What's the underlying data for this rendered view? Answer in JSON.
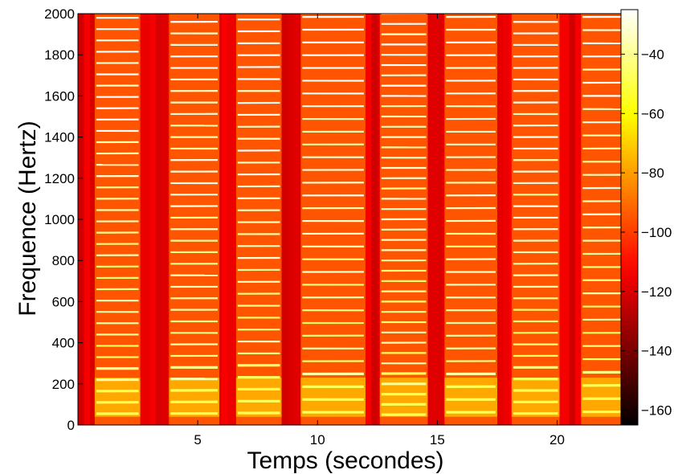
{
  "chart_data": {
    "type": "heatmap",
    "title": "",
    "xlabel": "Temps (secondes)",
    "ylabel": "Frequence (Hertz)",
    "xlim": [
      0,
      23
    ],
    "ylim": [
      0,
      2000
    ],
    "x_ticks": [
      5,
      10,
      15,
      20
    ],
    "y_ticks": [
      0,
      200,
      400,
      600,
      800,
      1000,
      1200,
      1400,
      1600,
      1800,
      2000
    ],
    "colorbar": {
      "colormap": "hot",
      "range": [
        -165,
        -25
      ],
      "ticks": [
        -40,
        -60,
        -80,
        -100,
        -120,
        -140,
        -160
      ],
      "tick_labels": [
        "−40",
        "−60",
        "−80",
        "−100",
        "−120",
        "−140",
        "−160"
      ]
    },
    "notes": [
      {
        "start": 0.7,
        "end": 2.6,
        "f0": 55
      },
      {
        "start": 3.8,
        "end": 5.9,
        "f0": 56
      },
      {
        "start": 6.6,
        "end": 8.5,
        "f0": 58
      },
      {
        "start": 9.3,
        "end": 12.0,
        "f0": 62
      },
      {
        "start": 12.6,
        "end": 14.6,
        "f0": 50
      },
      {
        "start": 15.3,
        "end": 17.5,
        "f0": 62
      },
      {
        "start": 18.1,
        "end": 20.1,
        "f0": 56
      },
      {
        "start": 21.0,
        "end": 23.0,
        "f0": 64
      }
    ],
    "background_level_db": -118,
    "note_background_db": -95,
    "harmonic_peak_db": -45,
    "grid": false
  }
}
